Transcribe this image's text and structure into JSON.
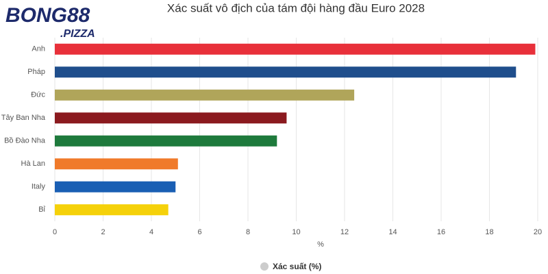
{
  "logo": {
    "name": "BONG88",
    "domain": ".PIZZA"
  },
  "chart_data": {
    "type": "hbar",
    "title": "Xác suất vô địch của tám đội hàng đầu Euro 2028",
    "x_label": "%",
    "categories": [
      "Anh",
      "Pháp",
      "Đức",
      "Tây Ban Nha",
      "Bồ Đào Nha",
      "Hà Lan",
      "Italy",
      "Bỉ"
    ],
    "series": [
      {
        "name": "Xác suất (%)",
        "color": "#cccccc",
        "values": [
          19.9,
          19.1,
          12.4,
          9.6,
          9.2,
          5.1,
          5.0,
          4.7
        ]
      }
    ],
    "bar_colors": [
      "#e8303a",
      "#1f4e8c",
      "#b0a55a",
      "#8b1a1f",
      "#1e7a3c",
      "#f07a2a",
      "#1a5fb4",
      "#f5d10a"
    ],
    "xlim": [
      0,
      20
    ],
    "xticks": [
      0,
      2,
      4,
      6,
      8,
      10,
      12,
      14,
      16,
      18,
      20
    ],
    "grid": true
  }
}
